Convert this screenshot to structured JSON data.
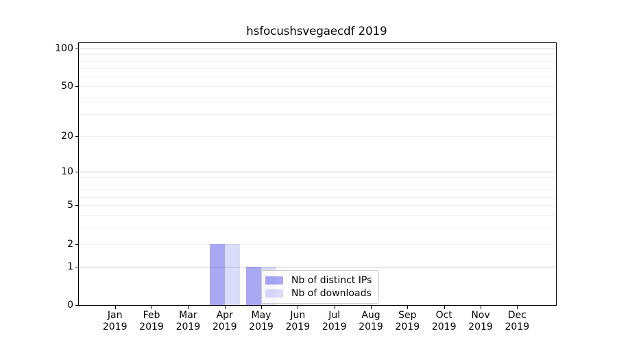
{
  "chart_data": {
    "type": "bar",
    "title": "hsfocushsvegaecdf 2019",
    "xlabel": "",
    "ylabel": "",
    "categories": [
      "Jan",
      "Feb",
      "Mar",
      "Apr",
      "May",
      "Jun",
      "Jul",
      "Aug",
      "Sep",
      "Oct",
      "Nov",
      "Dec"
    ],
    "category_year": "2019",
    "series": [
      {
        "name": "Nb of distinct IPs",
        "color": "#0000dc",
        "alpha": 0.34,
        "values": [
          0,
          0,
          0,
          2,
          1,
          0,
          0,
          0,
          0,
          0,
          0,
          0
        ]
      },
      {
        "name": "Nb of downloads",
        "color": "#0000dc",
        "alpha": 0.14,
        "values": [
          0,
          0,
          0,
          2,
          1,
          0,
          0,
          0,
          0,
          0,
          0,
          0
        ]
      }
    ],
    "yscale": "log1p",
    "ylim": [
      0,
      110.3
    ],
    "yticks": [
      0,
      1,
      2,
      5,
      10,
      20,
      50,
      100
    ],
    "major_gridlines": [
      1,
      10,
      100
    ],
    "minor_gridlines": [
      2,
      3,
      4,
      5,
      6,
      7,
      8,
      9,
      20,
      30,
      40,
      50,
      60,
      70,
      80,
      90
    ],
    "grid": true,
    "legend_position": "lower right inside plot",
    "colors": {
      "background": "#ffffff",
      "axis": "#000000",
      "text": "#000000",
      "major_grid": "#c8c8c8",
      "minor_grid": "#efefef",
      "bar_dark": "rgba(0,0,220,0.34)",
      "bar_light": "rgba(0,0,220,0.14)"
    }
  }
}
